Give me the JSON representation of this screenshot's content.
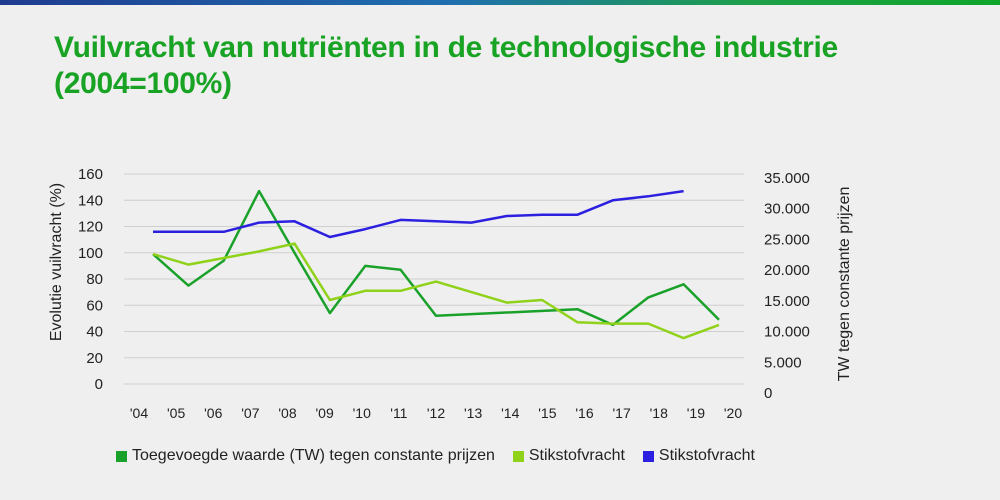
{
  "title_line1": "Vuilvracht van nutriënten in de technologische industrie",
  "title_line2": "(2004=100%)",
  "chart_data": {
    "type": "line",
    "x": [
      "'04",
      "'05",
      "'06",
      "'07",
      "'08",
      "'09",
      "'10",
      "'11",
      "'12",
      "'13",
      "'14",
      "'15",
      "'16",
      "'17",
      "'18",
      "'19",
      "'20"
    ],
    "ylabel": "Evolutie vuilvracht (%)",
    "y2label": "TW tegen constante prijzen",
    "ylim": [
      0,
      160
    ],
    "yticks": [
      "0",
      "20",
      "40",
      "60",
      "80",
      "100",
      "120",
      "140",
      "160"
    ],
    "y2lim": [
      0,
      35000
    ],
    "y2ticks": [
      "0",
      "5.000",
      "10.000",
      "15.000",
      "20.000",
      "25.000",
      "30.000",
      "35.000"
    ],
    "grid": true,
    "legend_position": "bottom",
    "series": [
      {
        "name": "Toegevoegde waarde (TW) tegen constante prijzen",
        "color": "#1aa12a",
        "axis": "left",
        "values": [
          99,
          75,
          94,
          147,
          100,
          54,
          90,
          87,
          52,
          null,
          null,
          null,
          57,
          45,
          66,
          76,
          49
        ]
      },
      {
        "name": "Stikstofvracht",
        "color": "#8fd219",
        "axis": "left",
        "values": [
          99,
          91,
          96,
          101,
          107,
          64,
          71,
          71,
          78,
          70,
          62,
          64,
          47,
          46,
          46,
          35,
          45
        ]
      },
      {
        "name": "Stikstofvracht",
        "color": "#2b1fe0",
        "axis": "left",
        "values": [
          116,
          116,
          116,
          123,
          124,
          112,
          118,
          125,
          124,
          123,
          128,
          129,
          129,
          140,
          143,
          147,
          null
        ]
      }
    ]
  }
}
